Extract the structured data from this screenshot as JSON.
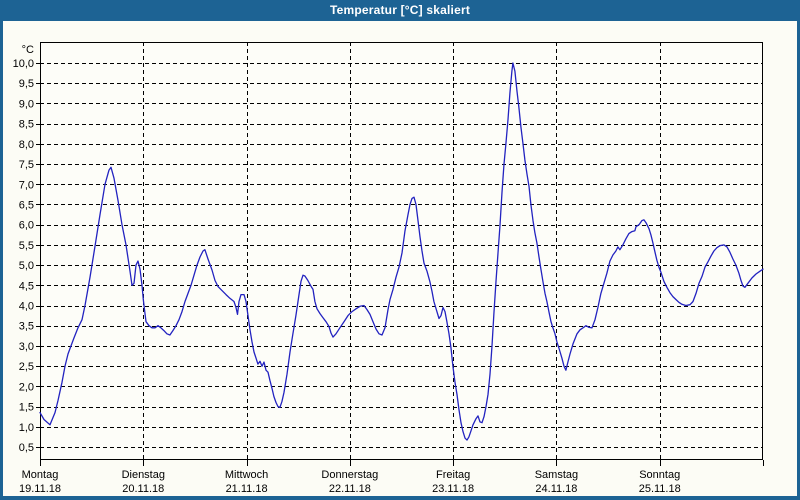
{
  "window": {
    "title": "Temperatur [°C] skaliert"
  },
  "colors": {
    "title_bar": "#1d6394",
    "window_border": "#1d6394",
    "background": "#fcfcf5",
    "plot_background": "#fdfdf8",
    "line": "#2323c0",
    "grid": "#000000",
    "frame": "#000000",
    "title_text": "#ffffff",
    "label_text": "#000000"
  },
  "chart_data": {
    "type": "line",
    "title": "Temperatur [°C] skaliert",
    "y_axis_unit": "°C",
    "ylim": [
      0.5,
      10.0
    ],
    "y_tick_step": 0.5,
    "y_tick_labels": [
      "10,0",
      "9,5",
      "9,0",
      "8,5",
      "8,0",
      "7,5",
      "7,0",
      "6,5",
      "6,0",
      "5,5",
      "5,0",
      "4,5",
      "4,0",
      "3,5",
      "3,0",
      "2,5",
      "2,0",
      "1,5",
      "1,0",
      "0,5"
    ],
    "grid": "dashed",
    "legend_position": "none",
    "x_days": [
      {
        "name": "Montag",
        "date": "19.11.18"
      },
      {
        "name": "Dienstag",
        "date": "20.11.18"
      },
      {
        "name": "Mittwoch",
        "date": "21.11.18"
      },
      {
        "name": "Donnerstag",
        "date": "22.11.18"
      },
      {
        "name": "Freitag",
        "date": "23.11.18"
      },
      {
        "name": "Samstag",
        "date": "24.11.18"
      },
      {
        "name": "Sonntag",
        "date": "25.11.18"
      }
    ],
    "series": [
      {
        "name": "Temperatur",
        "x_unit": "days_since_start",
        "points": [
          [
            0.0,
            1.35
          ],
          [
            0.039,
            1.18
          ],
          [
            0.097,
            1.05
          ],
          [
            0.145,
            1.35
          ],
          [
            0.174,
            1.65
          ],
          [
            0.213,
            2.1
          ],
          [
            0.242,
            2.5
          ],
          [
            0.271,
            2.8
          ],
          [
            0.3,
            3.0
          ],
          [
            0.329,
            3.2
          ],
          [
            0.368,
            3.45
          ],
          [
            0.407,
            3.65
          ],
          [
            0.436,
            4.0
          ],
          [
            0.484,
            4.7
          ],
          [
            0.532,
            5.45
          ],
          [
            0.581,
            6.25
          ],
          [
            0.629,
            7.0
          ],
          [
            0.668,
            7.35
          ],
          [
            0.687,
            7.42
          ],
          [
            0.716,
            7.15
          ],
          [
            0.755,
            6.6
          ],
          [
            0.794,
            6.0
          ],
          [
            0.833,
            5.5
          ],
          [
            0.871,
            4.85
          ],
          [
            0.891,
            4.5
          ],
          [
            0.91,
            4.55
          ],
          [
            0.929,
            5.0
          ],
          [
            0.949,
            5.1
          ],
          [
            0.968,
            4.9
          ],
          [
            0.988,
            4.5
          ],
          [
            1.0,
            4.15
          ],
          [
            1.012,
            3.9
          ],
          [
            1.026,
            3.6
          ],
          [
            1.055,
            3.5
          ],
          [
            1.084,
            3.45
          ],
          [
            1.113,
            3.45
          ],
          [
            1.142,
            3.5
          ],
          [
            1.171,
            3.45
          ],
          [
            1.2,
            3.38
          ],
          [
            1.229,
            3.3
          ],
          [
            1.258,
            3.27
          ],
          [
            1.287,
            3.38
          ],
          [
            1.317,
            3.5
          ],
          [
            1.346,
            3.65
          ],
          [
            1.375,
            3.85
          ],
          [
            1.404,
            4.1
          ],
          [
            1.433,
            4.3
          ],
          [
            1.462,
            4.5
          ],
          [
            1.491,
            4.75
          ],
          [
            1.52,
            5.0
          ],
          [
            1.549,
            5.2
          ],
          [
            1.578,
            5.35
          ],
          [
            1.597,
            5.38
          ],
          [
            1.627,
            5.15
          ],
          [
            1.665,
            4.88
          ],
          [
            1.694,
            4.62
          ],
          [
            1.723,
            4.47
          ],
          [
            1.762,
            4.37
          ],
          [
            1.801,
            4.27
          ],
          [
            1.839,
            4.18
          ],
          [
            1.878,
            4.1
          ],
          [
            1.898,
            3.95
          ],
          [
            1.912,
            3.78
          ],
          [
            1.927,
            4.1
          ],
          [
            1.946,
            4.27
          ],
          [
            1.975,
            4.27
          ],
          [
            1.994,
            4.1
          ],
          [
            2.014,
            3.75
          ],
          [
            2.033,
            3.4
          ],
          [
            2.053,
            3.1
          ],
          [
            2.072,
            2.85
          ],
          [
            2.091,
            2.7
          ],
          [
            2.11,
            2.55
          ],
          [
            2.13,
            2.62
          ],
          [
            2.149,
            2.5
          ],
          [
            2.169,
            2.6
          ],
          [
            2.188,
            2.4
          ],
          [
            2.207,
            2.35
          ],
          [
            2.226,
            2.15
          ],
          [
            2.246,
            1.95
          ],
          [
            2.265,
            1.75
          ],
          [
            2.285,
            1.6
          ],
          [
            2.304,
            1.5
          ],
          [
            2.323,
            1.48
          ],
          [
            2.342,
            1.62
          ],
          [
            2.362,
            1.85
          ],
          [
            2.391,
            2.3
          ],
          [
            2.42,
            2.85
          ],
          [
            2.449,
            3.3
          ],
          [
            2.478,
            3.75
          ],
          [
            2.507,
            4.25
          ],
          [
            2.527,
            4.6
          ],
          [
            2.546,
            4.75
          ],
          [
            2.565,
            4.73
          ],
          [
            2.594,
            4.62
          ],
          [
            2.623,
            4.48
          ],
          [
            2.643,
            4.4
          ],
          [
            2.662,
            4.1
          ],
          [
            2.682,
            3.92
          ],
          [
            2.711,
            3.8
          ],
          [
            2.74,
            3.7
          ],
          [
            2.769,
            3.6
          ],
          [
            2.798,
            3.48
          ],
          [
            2.817,
            3.32
          ],
          [
            2.837,
            3.22
          ],
          [
            2.866,
            3.3
          ],
          [
            2.904,
            3.45
          ],
          [
            2.943,
            3.6
          ],
          [
            2.982,
            3.75
          ],
          [
            3.021,
            3.85
          ],
          [
            3.059,
            3.92
          ],
          [
            3.098,
            3.98
          ],
          [
            3.137,
            4.0
          ],
          [
            3.166,
            3.9
          ],
          [
            3.195,
            3.78
          ],
          [
            3.224,
            3.6
          ],
          [
            3.253,
            3.42
          ],
          [
            3.282,
            3.3
          ],
          [
            3.311,
            3.27
          ],
          [
            3.34,
            3.45
          ],
          [
            3.369,
            3.9
          ],
          [
            3.389,
            4.15
          ],
          [
            3.418,
            4.4
          ],
          [
            3.447,
            4.7
          ],
          [
            3.476,
            4.95
          ],
          [
            3.505,
            5.3
          ],
          [
            3.534,
            5.85
          ],
          [
            3.563,
            6.25
          ],
          [
            3.582,
            6.5
          ],
          [
            3.602,
            6.65
          ],
          [
            3.621,
            6.68
          ],
          [
            3.64,
            6.5
          ],
          [
            3.66,
            6.1
          ],
          [
            3.679,
            5.7
          ],
          [
            3.698,
            5.35
          ],
          [
            3.718,
            5.05
          ],
          [
            3.747,
            4.85
          ],
          [
            3.776,
            4.58
          ],
          [
            3.795,
            4.35
          ],
          [
            3.814,
            4.1
          ],
          [
            3.843,
            3.85
          ],
          [
            3.863,
            3.68
          ],
          [
            3.882,
            3.75
          ],
          [
            3.902,
            3.95
          ],
          [
            3.921,
            3.85
          ],
          [
            3.94,
            3.6
          ],
          [
            3.96,
            3.3
          ],
          [
            3.979,
            2.95
          ],
          [
            3.998,
            2.5
          ],
          [
            4.018,
            2.1
          ],
          [
            4.037,
            1.8
          ],
          [
            4.057,
            1.42
          ],
          [
            4.076,
            1.1
          ],
          [
            4.095,
            0.88
          ],
          [
            4.115,
            0.72
          ],
          [
            4.134,
            0.67
          ],
          [
            4.153,
            0.75
          ],
          [
            4.173,
            0.9
          ],
          [
            4.192,
            1.05
          ],
          [
            4.221,
            1.2
          ],
          [
            4.241,
            1.27
          ],
          [
            4.26,
            1.12
          ],
          [
            4.279,
            1.1
          ],
          [
            4.299,
            1.25
          ],
          [
            4.318,
            1.5
          ],
          [
            4.337,
            1.8
          ],
          [
            4.357,
            2.3
          ],
          [
            4.376,
            3.0
          ],
          [
            4.395,
            3.8
          ],
          [
            4.415,
            4.6
          ],
          [
            4.434,
            5.3
          ],
          [
            4.453,
            5.95
          ],
          [
            4.473,
            6.8
          ],
          [
            4.492,
            7.5
          ],
          [
            4.511,
            8.0
          ],
          [
            4.531,
            8.6
          ],
          [
            4.55,
            9.25
          ],
          [
            4.569,
            9.8
          ],
          [
            4.579,
            10.0
          ],
          [
            4.598,
            9.8
          ],
          [
            4.618,
            9.3
          ],
          [
            4.637,
            8.9
          ],
          [
            4.657,
            8.4
          ],
          [
            4.676,
            8.0
          ],
          [
            4.695,
            7.6
          ],
          [
            4.715,
            7.25
          ],
          [
            4.734,
            6.95
          ],
          [
            4.753,
            6.5
          ],
          [
            4.773,
            6.1
          ],
          [
            4.792,
            5.8
          ],
          [
            4.811,
            5.55
          ],
          [
            4.831,
            5.2
          ],
          [
            4.85,
            4.9
          ],
          [
            4.869,
            4.6
          ],
          [
            4.889,
            4.3
          ],
          [
            4.908,
            4.1
          ],
          [
            4.927,
            3.85
          ],
          [
            4.947,
            3.6
          ],
          [
            4.966,
            3.45
          ],
          [
            4.986,
            3.3
          ],
          [
            5.005,
            3.1
          ],
          [
            5.024,
            2.95
          ],
          [
            5.053,
            2.7
          ],
          [
            5.073,
            2.5
          ],
          [
            5.092,
            2.4
          ],
          [
            5.111,
            2.6
          ],
          [
            5.131,
            2.8
          ],
          [
            5.16,
            3.05
          ],
          [
            5.199,
            3.3
          ],
          [
            5.228,
            3.4
          ],
          [
            5.257,
            3.45
          ],
          [
            5.286,
            3.5
          ],
          [
            5.315,
            3.46
          ],
          [
            5.344,
            3.45
          ],
          [
            5.373,
            3.65
          ],
          [
            5.402,
            3.95
          ],
          [
            5.431,
            4.3
          ],
          [
            5.46,
            4.55
          ],
          [
            5.489,
            4.8
          ],
          [
            5.518,
            5.1
          ],
          [
            5.547,
            5.25
          ],
          [
            5.576,
            5.35
          ],
          [
            5.595,
            5.45
          ],
          [
            5.615,
            5.38
          ],
          [
            5.644,
            5.5
          ],
          [
            5.673,
            5.65
          ],
          [
            5.702,
            5.78
          ],
          [
            5.731,
            5.83
          ],
          [
            5.76,
            5.85
          ],
          [
            5.77,
            5.95
          ],
          [
            5.799,
            6.0
          ],
          [
            5.828,
            6.1
          ],
          [
            5.847,
            6.12
          ],
          [
            5.867,
            6.05
          ],
          [
            5.896,
            5.9
          ],
          [
            5.915,
            5.75
          ],
          [
            5.934,
            5.55
          ],
          [
            5.954,
            5.32
          ],
          [
            5.973,
            5.12
          ],
          [
            5.992,
            4.95
          ],
          [
            6.012,
            4.82
          ],
          [
            6.041,
            4.6
          ],
          [
            6.07,
            4.45
          ],
          [
            6.099,
            4.32
          ],
          [
            6.128,
            4.22
          ],
          [
            6.157,
            4.15
          ],
          [
            6.186,
            4.08
          ],
          [
            6.215,
            4.03
          ],
          [
            6.254,
            4.0
          ],
          [
            6.293,
            4.02
          ],
          [
            6.322,
            4.1
          ],
          [
            6.351,
            4.3
          ],
          [
            6.38,
            4.55
          ],
          [
            6.409,
            4.72
          ],
          [
            6.438,
            4.95
          ],
          [
            6.467,
            5.08
          ],
          [
            6.496,
            5.22
          ],
          [
            6.525,
            5.35
          ],
          [
            6.554,
            5.43
          ],
          [
            6.583,
            5.48
          ],
          [
            6.622,
            5.5
          ],
          [
            6.651,
            5.45
          ],
          [
            6.68,
            5.32
          ],
          [
            6.709,
            5.15
          ],
          [
            6.738,
            5.0
          ],
          [
            6.767,
            4.8
          ],
          [
            6.787,
            4.62
          ],
          [
            6.806,
            4.48
          ],
          [
            6.825,
            4.45
          ],
          [
            6.854,
            4.55
          ],
          [
            6.893,
            4.68
          ],
          [
            6.932,
            4.78
          ],
          [
            6.971,
            4.85
          ],
          [
            7.0,
            4.9
          ]
        ]
      }
    ]
  }
}
